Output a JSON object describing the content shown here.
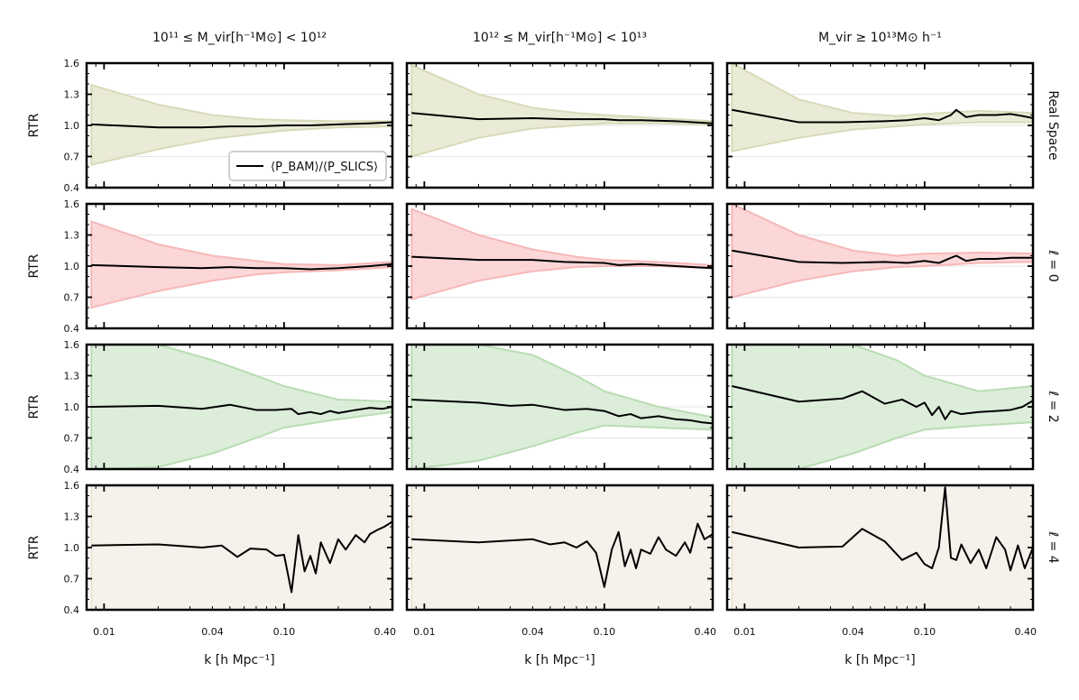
{
  "chart_data": {
    "type": "line",
    "layout": "4x3 grid",
    "column_titles": [
      "10¹¹ ≤ M_vir[h⁻¹M⊙] < 10¹²",
      "10¹² ≤ M_vir[h⁻¹M⊙] < 10¹³",
      "M_vir ≥ 10¹³M⊙ h⁻¹"
    ],
    "row_titles": [
      "Real Space",
      "ℓ = 0",
      "ℓ = 2",
      "ℓ = 4"
    ],
    "ylabel": "RTR",
    "xlabel": "k [h Mpc⁻¹]",
    "xscale": "log",
    "xlim": [
      0.008,
      0.4
    ],
    "ylim": [
      0.4,
      1.6
    ],
    "xticks": [
      0.01,
      0.04,
      0.1,
      0.4
    ],
    "xtick_labels": [
      "0.01",
      "0.04",
      "0.10",
      "0.40"
    ],
    "yticks": [
      0.4,
      0.7,
      1.0,
      1.3,
      1.6
    ],
    "ytick_labels": [
      "0.4",
      "0.7",
      "1.0",
      "1.3",
      "1.6"
    ],
    "legend": {
      "label": "⟨P_BAM⟩/⟨P_SLICS⟩",
      "location": "lower right of top-left panel"
    },
    "band_colors": [
      "#e6e7cf",
      "#fbd0d0",
      "#d6ead3",
      "#f4efe6"
    ],
    "band_edge_colors": [
      "#d8dab8",
      "#f6b8b8",
      "#b9dcb3",
      "#ebe3d6"
    ],
    "line_color": "#000000",
    "panels": [
      {
        "row": 0,
        "col": 0,
        "x": [
          0.0085,
          0.02,
          0.035,
          0.05,
          0.07,
          0.1,
          0.14,
          0.2,
          0.3,
          0.4
        ],
        "y": [
          1.01,
          0.98,
          0.98,
          0.99,
          0.99,
          1.0,
          1.0,
          1.01,
          1.02,
          1.03
        ],
        "band_x": [
          0.0085,
          0.02,
          0.04,
          0.07,
          0.1,
          0.2,
          0.4
        ],
        "band_lo": [
          0.62,
          0.77,
          0.87,
          0.92,
          0.95,
          0.98,
          0.99
        ],
        "band_hi": [
          1.39,
          1.2,
          1.1,
          1.06,
          1.05,
          1.04,
          1.04
        ]
      },
      {
        "row": 0,
        "col": 1,
        "x": [
          0.0085,
          0.02,
          0.04,
          0.06,
          0.1,
          0.12,
          0.16,
          0.25,
          0.4
        ],
        "y": [
          1.12,
          1.06,
          1.07,
          1.06,
          1.06,
          1.05,
          1.05,
          1.04,
          1.02
        ],
        "band_x": [
          0.0085,
          0.02,
          0.04,
          0.07,
          0.1,
          0.2,
          0.4
        ],
        "band_lo": [
          0.7,
          0.88,
          0.97,
          1.0,
          1.02,
          1.02,
          1.01
        ],
        "band_hi": [
          1.58,
          1.3,
          1.17,
          1.12,
          1.1,
          1.07,
          1.04
        ]
      },
      {
        "row": 0,
        "col": 2,
        "x": [
          0.0085,
          0.02,
          0.035,
          0.06,
          0.08,
          0.1,
          0.12,
          0.14,
          0.15,
          0.17,
          0.2,
          0.25,
          0.3,
          0.35,
          0.4
        ],
        "y": [
          1.15,
          1.03,
          1.03,
          1.04,
          1.05,
          1.07,
          1.05,
          1.1,
          1.15,
          1.08,
          1.1,
          1.1,
          1.11,
          1.09,
          1.07
        ],
        "band_x": [
          0.0085,
          0.02,
          0.04,
          0.07,
          0.1,
          0.2,
          0.4
        ],
        "band_lo": [
          0.75,
          0.88,
          0.96,
          0.99,
          1.01,
          1.03,
          1.03
        ],
        "band_hi": [
          1.6,
          1.25,
          1.12,
          1.09,
          1.11,
          1.14,
          1.12
        ]
      },
      {
        "row": 1,
        "col": 0,
        "x": [
          0.0085,
          0.02,
          0.035,
          0.05,
          0.07,
          0.1,
          0.14,
          0.2,
          0.3,
          0.4
        ],
        "y": [
          1.01,
          0.99,
          0.98,
          0.99,
          0.98,
          0.98,
          0.97,
          0.98,
          1.0,
          1.02
        ],
        "band_x": [
          0.0085,
          0.02,
          0.04,
          0.07,
          0.1,
          0.2,
          0.4
        ],
        "band_lo": [
          0.6,
          0.76,
          0.86,
          0.92,
          0.94,
          0.96,
          0.99
        ],
        "band_hi": [
          1.43,
          1.21,
          1.1,
          1.05,
          1.02,
          1.01,
          1.04
        ]
      },
      {
        "row": 1,
        "col": 1,
        "x": [
          0.0085,
          0.02,
          0.04,
          0.06,
          0.1,
          0.12,
          0.16,
          0.25,
          0.4
        ],
        "y": [
          1.09,
          1.06,
          1.06,
          1.04,
          1.03,
          1.01,
          1.02,
          1.0,
          0.98
        ],
        "band_x": [
          0.0085,
          0.02,
          0.04,
          0.07,
          0.1,
          0.2,
          0.4
        ],
        "band_lo": [
          0.68,
          0.86,
          0.95,
          0.99,
          1.0,
          1.0,
          0.98
        ],
        "band_hi": [
          1.55,
          1.3,
          1.16,
          1.09,
          1.06,
          1.04,
          1.01
        ]
      },
      {
        "row": 1,
        "col": 2,
        "x": [
          0.0085,
          0.02,
          0.035,
          0.06,
          0.08,
          0.1,
          0.12,
          0.14,
          0.15,
          0.17,
          0.2,
          0.25,
          0.3,
          0.35,
          0.4
        ],
        "y": [
          1.15,
          1.04,
          1.03,
          1.04,
          1.03,
          1.05,
          1.03,
          1.08,
          1.1,
          1.05,
          1.07,
          1.07,
          1.08,
          1.08,
          1.08
        ],
        "band_x": [
          0.0085,
          0.02,
          0.04,
          0.07,
          0.1,
          0.2,
          0.4
        ],
        "band_lo": [
          0.7,
          0.86,
          0.95,
          0.99,
          1.0,
          1.03,
          1.04
        ],
        "band_hi": [
          1.6,
          1.3,
          1.15,
          1.1,
          1.12,
          1.13,
          1.12
        ]
      },
      {
        "row": 2,
        "col": 0,
        "x": [
          0.0085,
          0.02,
          0.035,
          0.05,
          0.07,
          0.09,
          0.11,
          0.12,
          0.14,
          0.16,
          0.18,
          0.2,
          0.25,
          0.3,
          0.35,
          0.4
        ],
        "y": [
          1.0,
          1.01,
          0.98,
          1.02,
          0.97,
          0.97,
          0.98,
          0.93,
          0.95,
          0.93,
          0.96,
          0.94,
          0.97,
          0.99,
          0.98,
          1.0
        ],
        "band_x": [
          0.0085,
          0.02,
          0.04,
          0.07,
          0.1,
          0.2,
          0.4
        ],
        "band_lo": [
          0.4,
          0.42,
          0.55,
          0.7,
          0.8,
          0.88,
          0.95
        ],
        "band_hi": [
          1.6,
          1.6,
          1.45,
          1.3,
          1.2,
          1.07,
          1.05
        ]
      },
      {
        "row": 2,
        "col": 1,
        "x": [
          0.0085,
          0.02,
          0.03,
          0.04,
          0.06,
          0.08,
          0.1,
          0.12,
          0.14,
          0.16,
          0.2,
          0.25,
          0.3,
          0.35,
          0.4
        ],
        "y": [
          1.07,
          1.04,
          1.01,
          1.02,
          0.97,
          0.98,
          0.96,
          0.91,
          0.93,
          0.89,
          0.91,
          0.88,
          0.87,
          0.85,
          0.84
        ],
        "band_x": [
          0.0085,
          0.02,
          0.04,
          0.07,
          0.1,
          0.2,
          0.4
        ],
        "band_lo": [
          0.4,
          0.48,
          0.62,
          0.75,
          0.82,
          0.8,
          0.78
        ],
        "band_hi": [
          1.6,
          1.6,
          1.5,
          1.3,
          1.15,
          1.0,
          0.9
        ]
      },
      {
        "row": 2,
        "col": 2,
        "x": [
          0.0085,
          0.02,
          0.035,
          0.045,
          0.06,
          0.075,
          0.09,
          0.1,
          0.11,
          0.12,
          0.13,
          0.14,
          0.16,
          0.2,
          0.25,
          0.3,
          0.35,
          0.4
        ],
        "y": [
          1.2,
          1.05,
          1.08,
          1.15,
          1.03,
          1.07,
          1.0,
          1.04,
          0.92,
          1.0,
          0.88,
          0.96,
          0.93,
          0.95,
          0.96,
          0.97,
          1.0,
          1.06
        ],
        "band_x": [
          0.0085,
          0.02,
          0.04,
          0.07,
          0.1,
          0.2,
          0.4
        ],
        "band_lo": [
          0.4,
          0.4,
          0.55,
          0.7,
          0.78,
          0.82,
          0.85
        ],
        "band_hi": [
          1.6,
          1.6,
          1.6,
          1.45,
          1.3,
          1.15,
          1.2
        ]
      },
      {
        "row": 3,
        "col": 0,
        "x": [
          0.0085,
          0.02,
          0.035,
          0.045,
          0.055,
          0.065,
          0.08,
          0.09,
          0.1,
          0.11,
          0.12,
          0.13,
          0.14,
          0.15,
          0.16,
          0.18,
          0.2,
          0.22,
          0.25,
          0.28,
          0.3,
          0.33,
          0.36,
          0.4
        ],
        "y": [
          1.02,
          1.03,
          1.0,
          1.02,
          0.91,
          0.99,
          0.98,
          0.92,
          0.93,
          0.57,
          1.12,
          0.77,
          0.92,
          0.75,
          1.05,
          0.85,
          1.08,
          0.98,
          1.12,
          1.05,
          1.13,
          1.17,
          1.2,
          1.25
        ],
        "band_x": [
          0.0085,
          0.02,
          0.04,
          0.07,
          0.1,
          0.15,
          0.2,
          0.3,
          0.4
        ],
        "band_lo": [
          0.4,
          0.4,
          0.4,
          0.4,
          0.4,
          0.4,
          0.4,
          0.4,
          0.4
        ],
        "band_hi": [
          1.6,
          1.6,
          1.6,
          1.6,
          1.6,
          1.6,
          1.6,
          1.6,
          1.6
        ]
      },
      {
        "row": 3,
        "col": 1,
        "x": [
          0.0085,
          0.02,
          0.04,
          0.05,
          0.06,
          0.07,
          0.08,
          0.09,
          0.1,
          0.11,
          0.12,
          0.13,
          0.14,
          0.15,
          0.16,
          0.18,
          0.2,
          0.22,
          0.25,
          0.28,
          0.3,
          0.33,
          0.36,
          0.4
        ],
        "y": [
          1.08,
          1.05,
          1.08,
          1.03,
          1.05,
          1.0,
          1.06,
          0.95,
          0.62,
          0.98,
          1.15,
          0.82,
          0.98,
          0.8,
          0.98,
          0.94,
          1.1,
          0.98,
          0.92,
          1.05,
          0.95,
          1.23,
          1.08,
          1.13
        ],
        "band_x": [
          0.0085,
          0.02,
          0.04,
          0.07,
          0.1,
          0.15,
          0.2,
          0.3,
          0.4
        ],
        "band_lo": [
          0.4,
          0.4,
          0.4,
          0.4,
          0.4,
          0.4,
          0.4,
          0.4,
          0.4
        ],
        "band_hi": [
          1.6,
          1.6,
          1.6,
          1.6,
          1.6,
          1.6,
          1.6,
          1.6,
          1.6
        ]
      },
      {
        "row": 3,
        "col": 2,
        "x": [
          0.0085,
          0.02,
          0.035,
          0.045,
          0.06,
          0.075,
          0.09,
          0.1,
          0.11,
          0.12,
          0.13,
          0.14,
          0.15,
          0.16,
          0.18,
          0.2,
          0.22,
          0.25,
          0.28,
          0.3,
          0.33,
          0.36,
          0.4
        ],
        "y": [
          1.15,
          1.0,
          1.01,
          1.18,
          1.06,
          0.88,
          0.95,
          0.84,
          0.8,
          1.0,
          1.58,
          0.9,
          0.88,
          1.03,
          0.85,
          0.98,
          0.8,
          1.1,
          0.98,
          0.78,
          1.02,
          0.8,
          1.0
        ],
        "band_x": [
          0.0085,
          0.02,
          0.04,
          0.07,
          0.1,
          0.15,
          0.2,
          0.3,
          0.4
        ],
        "band_lo": [
          0.4,
          0.4,
          0.4,
          0.4,
          0.4,
          0.4,
          0.4,
          0.4,
          0.4
        ],
        "band_hi": [
          1.6,
          1.6,
          1.6,
          1.6,
          1.6,
          1.6,
          1.6,
          1.6,
          1.6
        ]
      }
    ]
  }
}
